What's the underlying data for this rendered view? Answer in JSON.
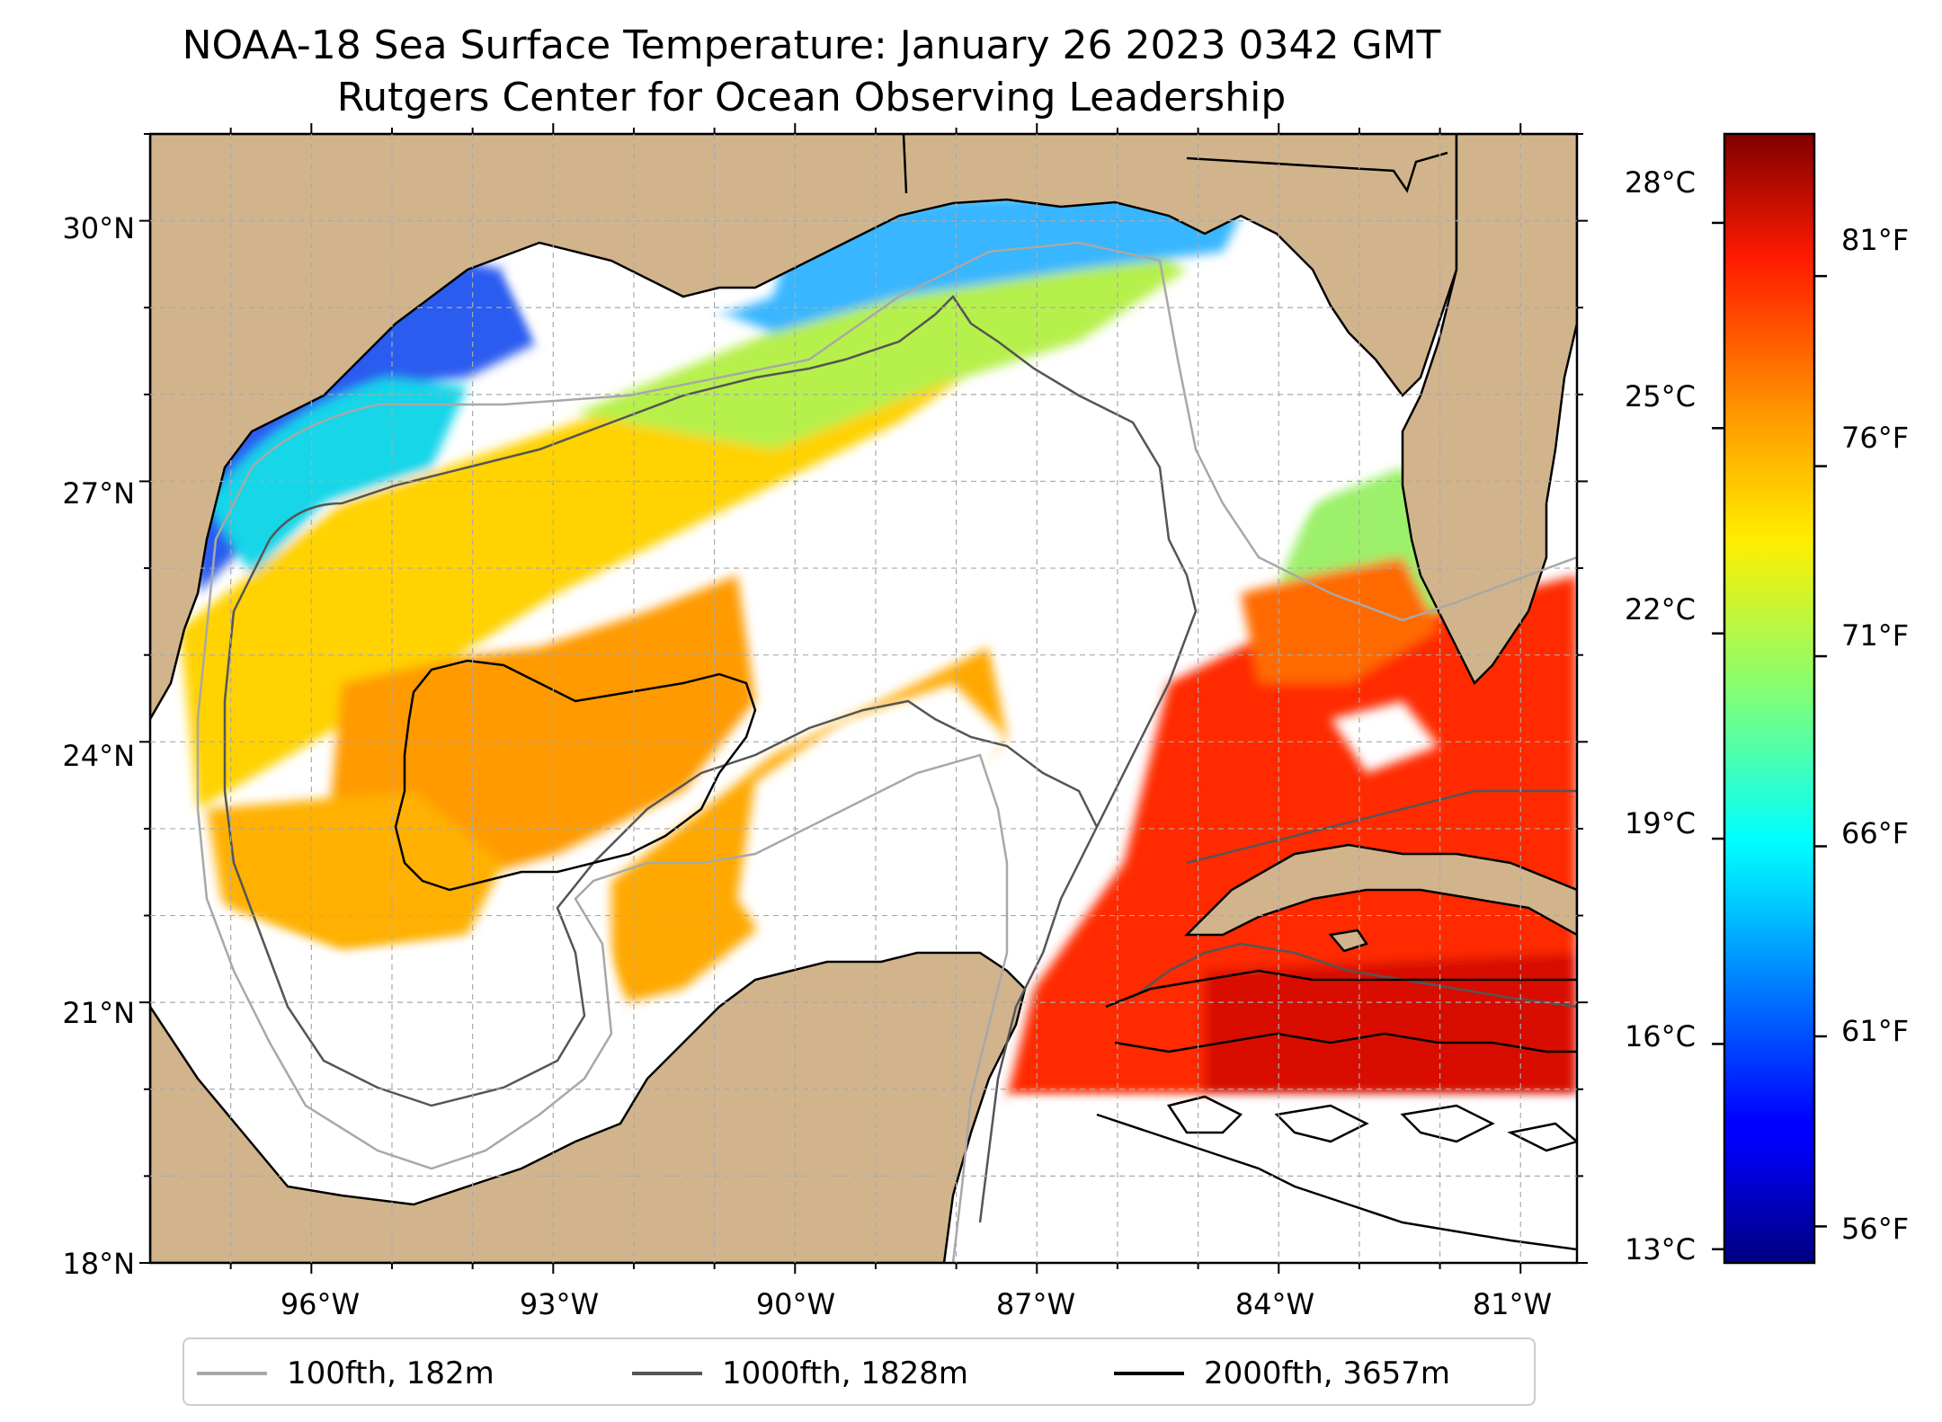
{
  "title_line1": "NOAA-18 Sea Surface Temperature: January 26 2023 0342 GMT",
  "title_line2": "Rutgers Center for Ocean Observing Leadership",
  "map": {
    "lon_range": [
      -98,
      -80.3
    ],
    "lat_range": [
      18,
      31
    ],
    "lat_labels": [
      {
        "lat": 30,
        "text": "30°N"
      },
      {
        "lat": 27,
        "text": "27°N"
      },
      {
        "lat": 24,
        "text": "24°N"
      },
      {
        "lat": 21,
        "text": "21°N"
      },
      {
        "lat": 18,
        "text": "18°N"
      }
    ],
    "lon_labels": [
      {
        "lon": -96,
        "text": "96°W"
      },
      {
        "lon": -93,
        "text": "93°W"
      },
      {
        "lon": -90,
        "text": "90°W"
      },
      {
        "lon": -87,
        "text": "87°W"
      },
      {
        "lon": -84,
        "text": "84°W"
      },
      {
        "lon": -81,
        "text": "81°W"
      }
    ],
    "colors": {
      "land": "#d2b48c",
      "coast": "#000000",
      "grid": "#aaaaaa",
      "no_data": "#ffffff"
    }
  },
  "colorbar": {
    "colormap": "jet",
    "celsius_labels": [
      {
        "value": 28,
        "text": "28°C"
      },
      {
        "value": 25,
        "text": "25°C"
      },
      {
        "value": 22,
        "text": "22°C"
      },
      {
        "value": 19,
        "text": "19°C"
      },
      {
        "value": 16,
        "text": "16°C"
      },
      {
        "value": 13,
        "text": "13°C"
      }
    ],
    "fahrenheit_labels": [
      {
        "value": 81,
        "text": "81°F"
      },
      {
        "value": 76,
        "text": "76°F"
      },
      {
        "value": 71,
        "text": "71°F"
      },
      {
        "value": 66,
        "text": "66°F"
      },
      {
        "value": 61,
        "text": "61°F"
      },
      {
        "value": 56,
        "text": "56°F"
      }
    ]
  },
  "legend": [
    {
      "label": "100fth, 182m",
      "color": "#a8a8a8"
    },
    {
      "label": "1000fth, 1828m",
      "color": "#555555"
    },
    {
      "label": "2000fth, 3657m",
      "color": "#000000"
    }
  ]
}
